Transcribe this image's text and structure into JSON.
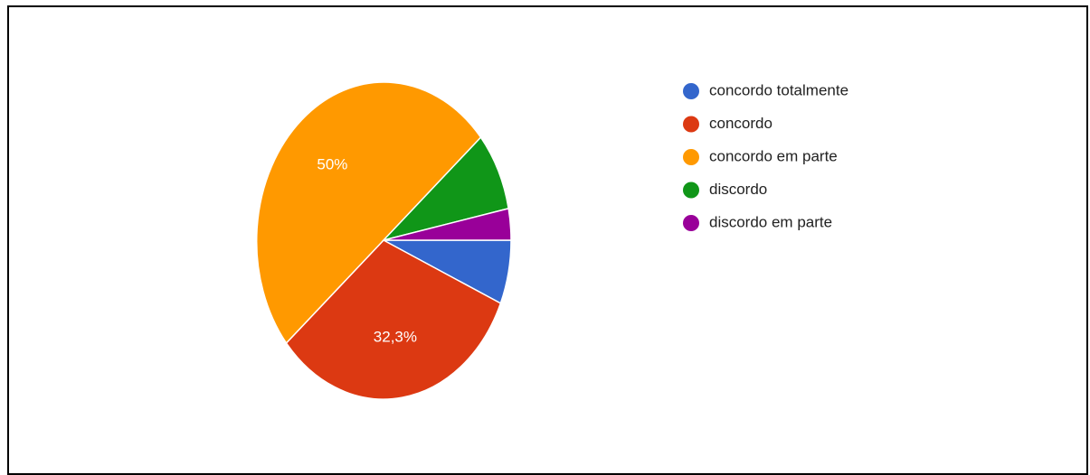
{
  "chart_data": {
    "type": "pie",
    "title": "",
    "legend_position": "right",
    "slices": [
      {
        "label": "concordo totalmente",
        "value": 6.5,
        "color": "#3366cc",
        "data_label": ""
      },
      {
        "label": "concordo",
        "value": 32.3,
        "color": "#dc3912",
        "data_label": "32,3%"
      },
      {
        "label": "concordo em parte",
        "value": 50,
        "color": "#ff9900",
        "data_label": "50%"
      },
      {
        "label": "discordo",
        "value": 8.0,
        "color": "#109618",
        "data_label": ""
      },
      {
        "label": "discordo em parte",
        "value": 3.2,
        "color": "#990099",
        "data_label": ""
      }
    ]
  }
}
